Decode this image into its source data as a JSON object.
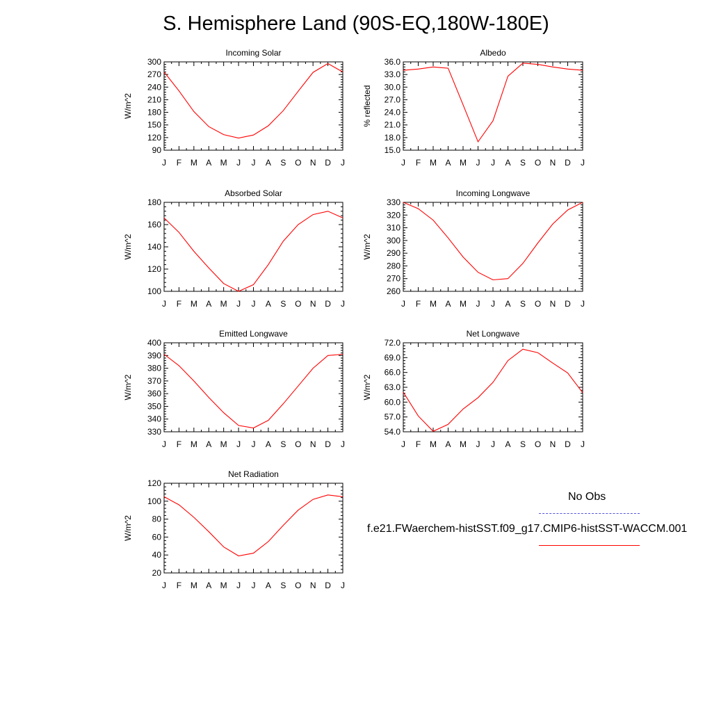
{
  "title": "S. Hemisphere Land (90S-EQ,180W-180E)",
  "legend": {
    "obs_label": "No Obs",
    "obs_color": "#5555dd",
    "model_label": "f.e21.FWaerchem-histSST.f09_g17.CMIP6-histSST-WACCM.001",
    "model_color": "#ff0000"
  },
  "chart_data": [
    {
      "type": "line",
      "title": "Incoming Solar",
      "ylabel": "W/m^2",
      "x": [
        "J",
        "F",
        "M",
        "A",
        "M",
        "J",
        "J",
        "A",
        "S",
        "O",
        "N",
        "D",
        "J"
      ],
      "ylim": [
        90,
        300
      ],
      "yticks": [
        90,
        120,
        150,
        180,
        210,
        240,
        270,
        300
      ],
      "ydecimals": 0,
      "series": [
        {
          "values": [
            276,
            231,
            182,
            146,
            127,
            119,
            126,
            148,
            184,
            230,
            275,
            296,
            276
          ]
        }
      ]
    },
    {
      "type": "line",
      "title": "Albedo",
      "ylabel": "% reflected",
      "x": [
        "J",
        "F",
        "M",
        "A",
        "M",
        "J",
        "J",
        "A",
        "S",
        "O",
        "N",
        "D",
        "J"
      ],
      "ylim": [
        15,
        36
      ],
      "yticks": [
        15,
        18,
        21,
        24,
        27,
        30,
        33,
        36
      ],
      "ydecimals": 1,
      "series": [
        {
          "values": [
            34.0,
            34.3,
            34.8,
            34.5,
            25.8,
            17.0,
            22.0,
            32.6,
            35.7,
            35.4,
            34.8,
            34.3,
            34.0
          ]
        }
      ]
    },
    {
      "type": "line",
      "title": "Absorbed Solar",
      "ylabel": "W/m^2",
      "x": [
        "J",
        "F",
        "M",
        "A",
        "M",
        "J",
        "J",
        "A",
        "S",
        "O",
        "N",
        "D",
        "J"
      ],
      "ylim": [
        100,
        180
      ],
      "yticks": [
        100,
        120,
        140,
        160,
        180
      ],
      "ydecimals": 0,
      "series": [
        {
          "values": [
            166,
            153,
            136,
            121,
            107,
            100,
            106,
            124,
            145,
            160,
            169,
            172,
            166
          ]
        }
      ]
    },
    {
      "type": "line",
      "title": "Incoming Longwave",
      "ylabel": "W/m^2",
      "x": [
        "J",
        "F",
        "M",
        "A",
        "M",
        "J",
        "J",
        "A",
        "S",
        "O",
        "N",
        "D",
        "J"
      ],
      "ylim": [
        260,
        330
      ],
      "yticks": [
        260,
        270,
        280,
        290,
        300,
        310,
        320,
        330
      ],
      "ydecimals": 0,
      "series": [
        {
          "values": [
            330,
            325,
            316,
            302,
            287,
            275,
            269,
            270,
            282,
            298,
            313,
            324,
            330
          ]
        }
      ]
    },
    {
      "type": "line",
      "title": "Emitted Longwave",
      "ylabel": "W/m^2",
      "x": [
        "J",
        "F",
        "M",
        "A",
        "M",
        "J",
        "J",
        "A",
        "S",
        "O",
        "N",
        "D",
        "J"
      ],
      "ylim": [
        330,
        400
      ],
      "yticks": [
        330,
        340,
        350,
        360,
        370,
        380,
        390,
        400
      ],
      "ydecimals": 0,
      "series": [
        {
          "values": [
            391,
            382,
            370,
            357,
            345,
            335,
            333,
            339,
            352,
            366,
            380,
            390,
            391
          ]
        }
      ]
    },
    {
      "type": "line",
      "title": "Net Longwave",
      "ylabel": "W/m^2",
      "x": [
        "J",
        "F",
        "M",
        "A",
        "M",
        "J",
        "J",
        "A",
        "S",
        "O",
        "N",
        "D",
        "J"
      ],
      "ylim": [
        54,
        72
      ],
      "yticks": [
        54,
        57,
        60,
        63,
        66,
        69,
        72
      ],
      "ydecimals": 1,
      "series": [
        {
          "values": [
            62.0,
            57.2,
            54.1,
            55.5,
            58.6,
            60.9,
            64.0,
            68.4,
            70.7,
            70.0,
            67.9,
            65.9,
            61.9
          ]
        }
      ]
    },
    {
      "type": "line",
      "title": "Net Radiation",
      "ylabel": "W/m^2",
      "x": [
        "J",
        "F",
        "M",
        "A",
        "M",
        "J",
        "J",
        "A",
        "S",
        "O",
        "N",
        "D",
        "J"
      ],
      "ylim": [
        20,
        120
      ],
      "yticks": [
        20,
        40,
        60,
        80,
        100,
        120
      ],
      "ydecimals": 0,
      "series": [
        {
          "values": [
            105,
            96,
            82,
            66,
            49,
            39,
            42,
            55,
            73,
            90,
            102,
            107,
            105
          ]
        }
      ]
    }
  ]
}
